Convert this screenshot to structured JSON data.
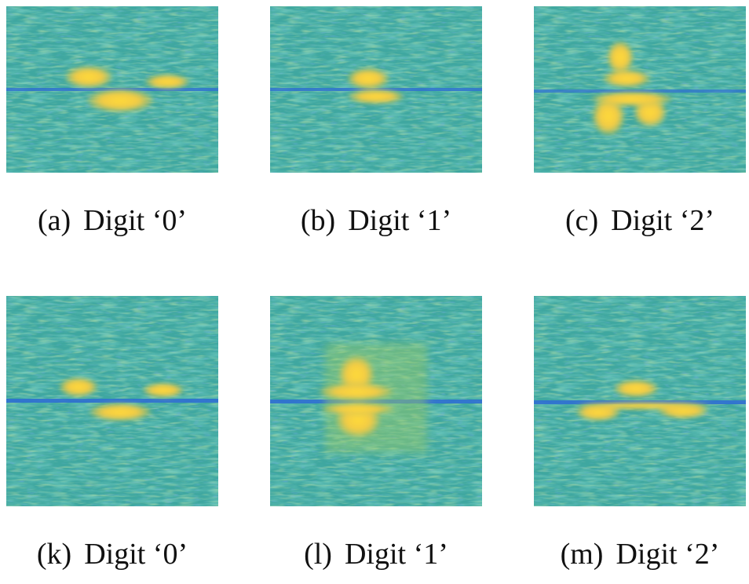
{
  "colors": {
    "background": "#3FA7A0",
    "noise_light": "#8FCB6A",
    "noise_dark": "#2E6FC9",
    "signal_mid": "#E6C64A",
    "signal_peak": "#FFD93C",
    "baseline": "#2F6FD1"
  },
  "panels": [
    {
      "id": "a",
      "label": "(a)",
      "title": "Digit ‘0’"
    },
    {
      "id": "b",
      "label": "(b)",
      "title": "Digit ‘1’"
    },
    {
      "id": "c",
      "label": "(c)",
      "title": "Digit ‘2’"
    },
    {
      "id": "k",
      "label": "(k)",
      "title": "Digit ‘0’"
    },
    {
      "id": "l",
      "label": "(l)",
      "title": "Digit ‘1’"
    },
    {
      "id": "m",
      "label": "(m)",
      "title": "Digit ‘2’"
    }
  ]
}
